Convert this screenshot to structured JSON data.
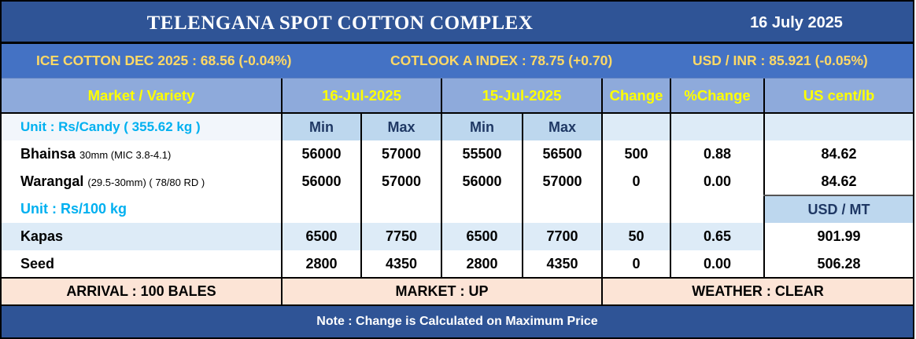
{
  "header": {
    "title": "TELENGANA SPOT COTTON COMPLEX",
    "date": "16 July 2025"
  },
  "ticker": {
    "ice": "ICE COTTON DEC 2025 : 68.56 (-0.04%)",
    "cotlook": "COTLOOK A INDEX : 78.75 (+0.70)",
    "usdinr": "USD / INR : 85.921 (-0.05%)"
  },
  "columns": {
    "market": "Market / Variety",
    "date1": "16-Jul-2025",
    "date2": "15-Jul-2025",
    "change": "Change",
    "pct": "%Change",
    "uscent": "US cent/lb",
    "min": "Min",
    "max": "Max",
    "usdmt": "USD / MT"
  },
  "units": {
    "candy": "Unit : Rs/Candy ( 355.62 kg )",
    "kg100": "Unit : Rs/100 kg"
  },
  "rows": [
    {
      "name": "Bhainsa",
      "detail": "30mm (MIC 3.8-4.1)",
      "min1": "56000",
      "max1": "57000",
      "min2": "55500",
      "max2": "56500",
      "change": "500",
      "pct": "0.88",
      "usd": "84.62"
    },
    {
      "name": "Warangal",
      "detail": "(29.5-30mm) ( 78/80 RD )",
      "min1": "56000",
      "max1": "57000",
      "min2": "56000",
      "max2": "57000",
      "change": "0",
      "pct": "0.00",
      "usd": "84.62"
    },
    {
      "name": "Kapas",
      "min1": "6500",
      "max1": "7750",
      "min2": "6500",
      "max2": "7700",
      "change": "50",
      "pct": "0.65",
      "usd": "901.99"
    },
    {
      "name": "Seed",
      "min1": "2800",
      "max1": "4350",
      "min2": "2800",
      "max2": "4350",
      "change": "0",
      "pct": "0.00",
      "usd": "506.28"
    }
  ],
  "footer": {
    "arrival": "ARRIVAL : 100 BALES",
    "market": "MARKET : UP",
    "weather": "WEATHER : CLEAR",
    "note": "Note : Change is Calculated on Maximum Price"
  },
  "colors": {
    "title_bg": "#2f5496",
    "ticker_bg": "#4472c4",
    "ticker_text": "#ffd966",
    "header_bg": "#8eaadb",
    "header_text": "#ffff00",
    "unit_text": "#00b0f0",
    "footer_bg": "#fce4d6"
  }
}
